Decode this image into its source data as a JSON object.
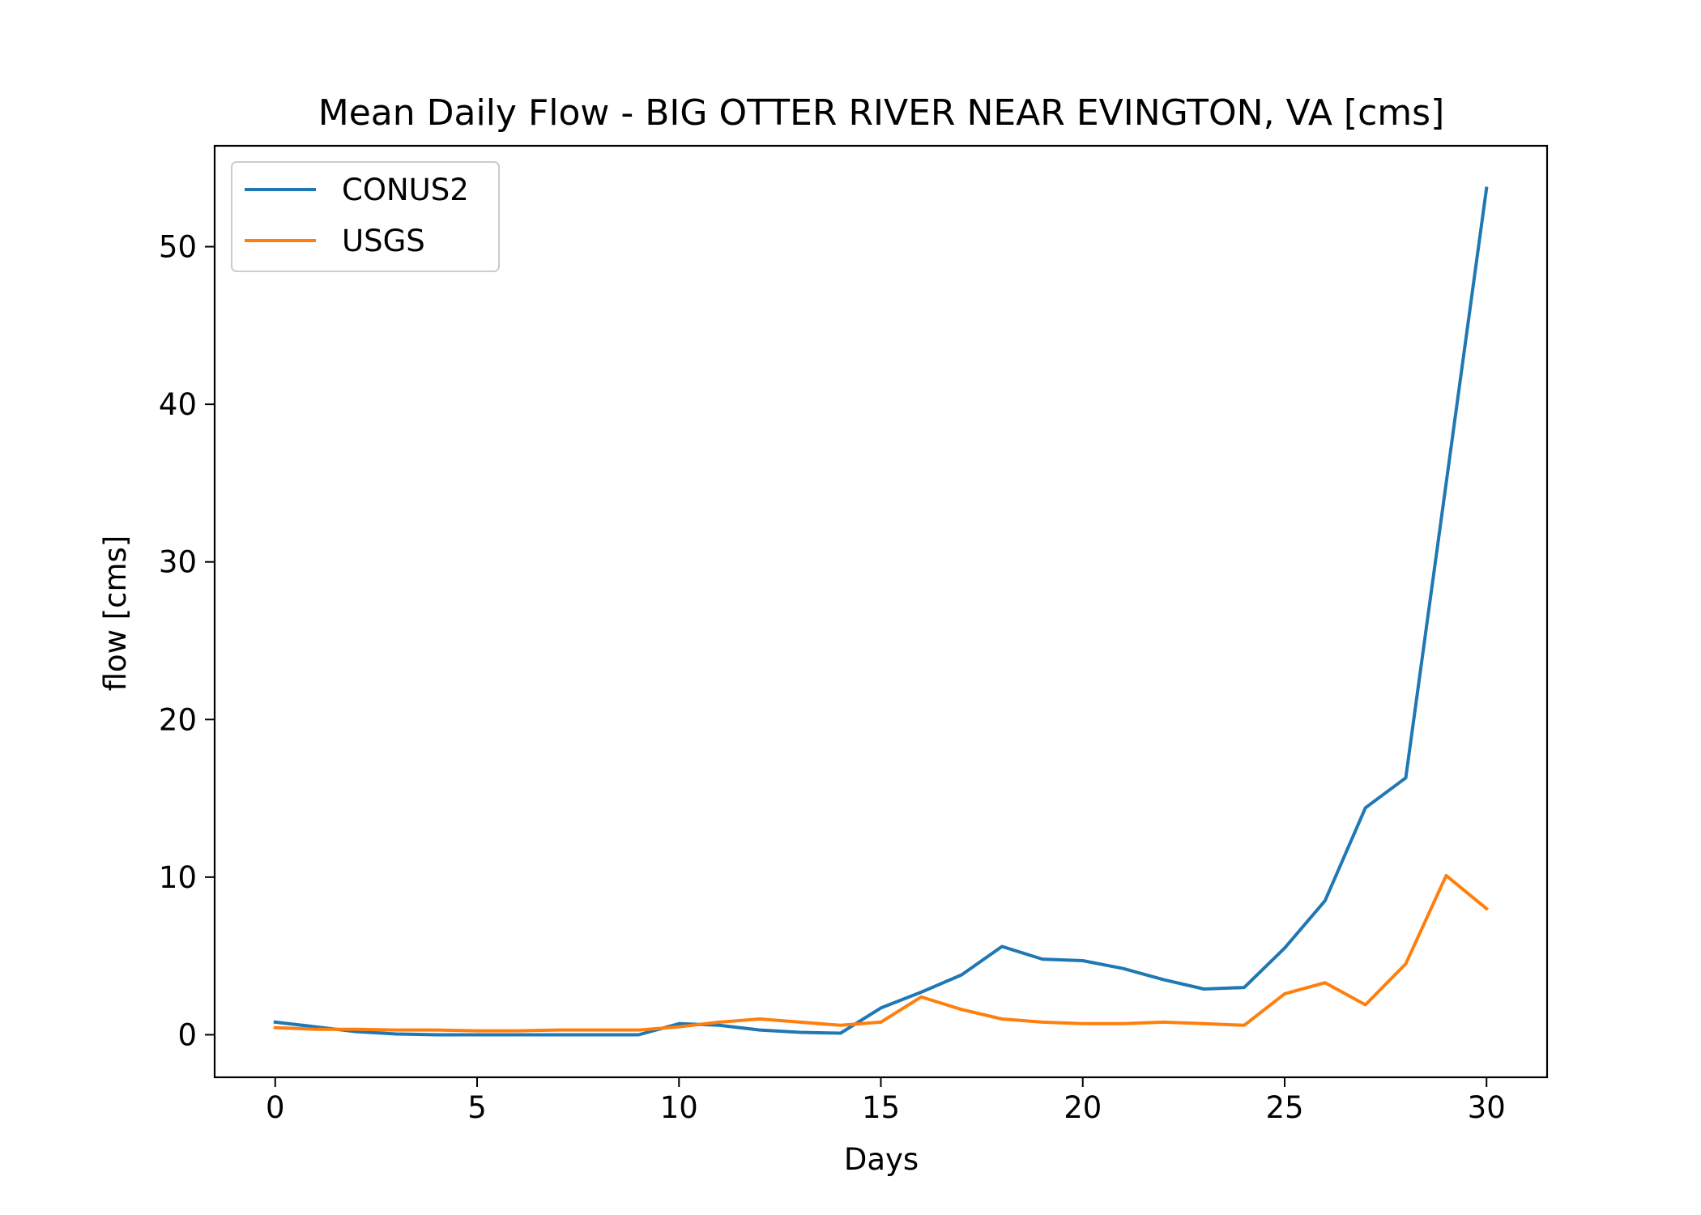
{
  "chart_data": {
    "type": "line",
    "title": "Mean Daily Flow - BIG OTTER RIVER NEAR EVINGTON, VA [cms]",
    "xlabel": "Days",
    "ylabel": "flow [cms]",
    "xlim": [
      -1.5,
      31.5
    ],
    "ylim": [
      -2.7,
      56.4
    ],
    "xticks": [
      0,
      5,
      10,
      15,
      20,
      25,
      30
    ],
    "yticks": [
      0,
      10,
      20,
      30,
      40,
      50
    ],
    "grid": false,
    "legend_position": "top-left",
    "x": [
      0,
      1,
      2,
      3,
      4,
      5,
      6,
      7,
      8,
      9,
      10,
      11,
      12,
      13,
      14,
      15,
      16,
      17,
      18,
      19,
      20,
      21,
      22,
      23,
      24,
      25,
      26,
      27,
      28,
      29,
      30
    ],
    "series": [
      {
        "name": "CONUS2",
        "color": "#1f77b4",
        "values": [
          0.8,
          0.5,
          0.2,
          0.05,
          0.0,
          0.0,
          0.0,
          0.0,
          0.0,
          0.0,
          0.7,
          0.6,
          0.3,
          0.15,
          0.1,
          1.7,
          2.7,
          3.8,
          5.6,
          4.8,
          4.7,
          4.2,
          3.5,
          2.9,
          3.0,
          5.5,
          8.5,
          14.4,
          16.3,
          35.0,
          53.7
        ]
      },
      {
        "name": "USGS",
        "color": "#ff7f0e",
        "values": [
          0.45,
          0.35,
          0.35,
          0.3,
          0.3,
          0.25,
          0.25,
          0.3,
          0.3,
          0.3,
          0.5,
          0.8,
          1.0,
          0.8,
          0.6,
          0.8,
          2.4,
          1.6,
          1.0,
          0.8,
          0.7,
          0.7,
          0.8,
          0.7,
          0.6,
          2.6,
          3.3,
          1.9,
          4.5,
          10.1,
          8.0
        ]
      }
    ]
  }
}
